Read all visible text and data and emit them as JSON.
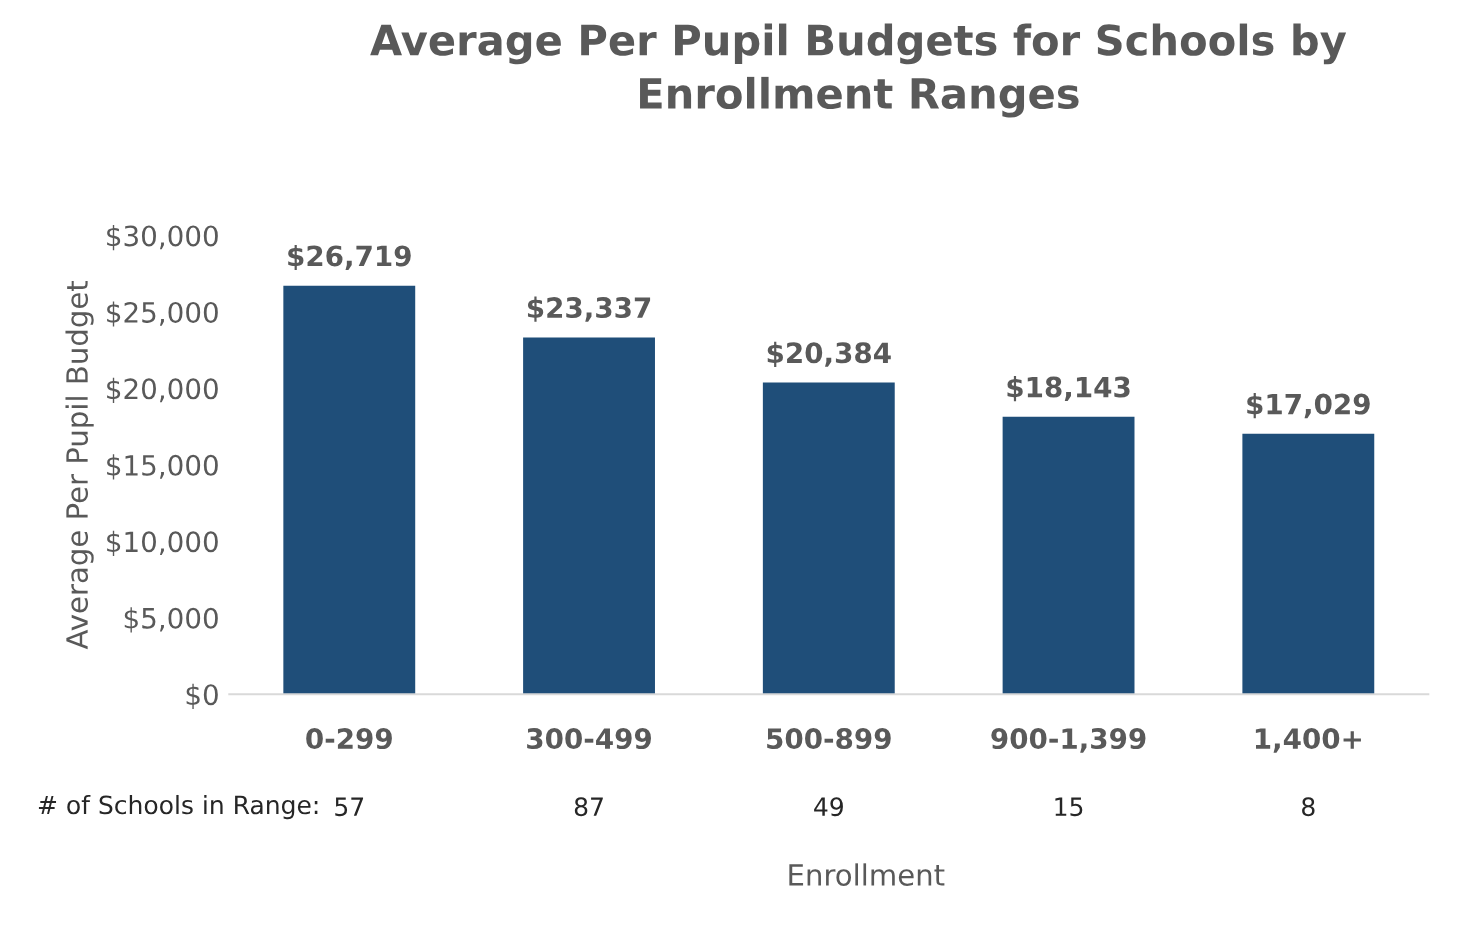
{
  "chart_data": {
    "type": "bar",
    "title": "Average Per Pupil Budgets for Schools by\nEnrollment Ranges",
    "xlabel": "Enrollment",
    "ylabel": "Average Per Pupil Budget",
    "categories": [
      "0-299",
      "300-499",
      "500-899",
      "900-1,399",
      "1,400+"
    ],
    "values": [
      26719,
      23337,
      20384,
      18143,
      17029
    ],
    "color": "#1f4e79",
    "value_labels": [
      "$26,719",
      "$23,337",
      "$20,384",
      "$18,143",
      "$17,029"
    ],
    "ylim": [
      0,
      30000
    ],
    "yticks": [
      {
        "value": 0,
        "label": "$0"
      },
      {
        "value": 5000,
        "label": "$5,000"
      },
      {
        "value": 10000,
        "label": "$10,000"
      },
      {
        "value": 15000,
        "label": "$15,000"
      },
      {
        "value": 20000,
        "label": "$20,000"
      },
      {
        "value": 25000,
        "label": "$25,000"
      },
      {
        "value": 30000,
        "label": "$30,000"
      }
    ],
    "grid": false,
    "legend": false,
    "annotations": [
      "# of Schools in Range:",
      "57",
      "87",
      "49",
      "15",
      "8"
    ]
  }
}
